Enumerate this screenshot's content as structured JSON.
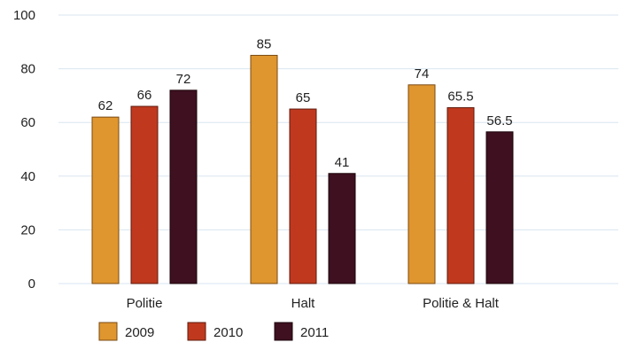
{
  "chart_data": {
    "type": "bar",
    "categories": [
      "Politie",
      "Halt",
      "Politie & Halt"
    ],
    "series": [
      {
        "name": "2009",
        "values": [
          62,
          85,
          74
        ],
        "value_labels": [
          "62",
          "85",
          "74"
        ],
        "color": "#E0962E",
        "stroke": "#7A4A12"
      },
      {
        "name": "2010",
        "values": [
          66,
          65,
          65.5
        ],
        "value_labels": [
          "66",
          "65",
          "65.5"
        ],
        "color": "#C0391E",
        "stroke": "#5E1A0C"
      },
      {
        "name": "2011",
        "values": [
          72,
          41,
          56.5
        ],
        "value_labels": [
          "72",
          "41",
          "56.5"
        ],
        "color": "#3E1020",
        "stroke": "#1A0408"
      }
    ],
    "yticks": [
      "0",
      "20",
      "40",
      "60",
      "80",
      "100"
    ],
    "ylim": [
      0,
      100
    ],
    "grid": true,
    "gridline_color": "#D9E6F0",
    "legend_position": "bottom-left",
    "title": "",
    "xlabel": "",
    "ylabel": ""
  }
}
